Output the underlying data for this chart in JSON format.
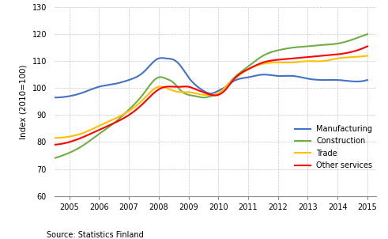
{
  "title": "",
  "ylabel": "Index (2010=100)",
  "source_text": "Source: Statistics Finland",
  "ylim": [
    60,
    130
  ],
  "yticks": [
    60,
    70,
    80,
    90,
    100,
    110,
    120,
    130
  ],
  "xlim": [
    2004.5,
    2015.3
  ],
  "xticks": [
    2005,
    2006,
    2007,
    2008,
    2009,
    2010,
    2011,
    2012,
    2013,
    2014,
    2015
  ],
  "background_color": "#ffffff",
  "grid_color": "#c8c8c8",
  "series": {
    "Manufacturing": {
      "color": "#4472C4",
      "x": [
        2004.5,
        2005.0,
        2005.5,
        2006.0,
        2006.5,
        2007.0,
        2007.5,
        2008.0,
        2008.25,
        2008.5,
        2008.75,
        2009.0,
        2009.25,
        2009.5,
        2009.75,
        2010.0,
        2010.25,
        2010.5,
        2011.0,
        2011.5,
        2012.0,
        2012.5,
        2013.0,
        2013.5,
        2014.0,
        2014.5,
        2015.0
      ],
      "y": [
        96.5,
        97.0,
        98.5,
        100.5,
        101.5,
        103.0,
        106.0,
        111.0,
        111.0,
        110.5,
        108.0,
        104.0,
        101.0,
        99.0,
        98.0,
        99.0,
        100.5,
        102.5,
        104.0,
        105.0,
        104.5,
        104.5,
        103.5,
        103.0,
        103.0,
        102.5,
        103.0
      ]
    },
    "Construction": {
      "color": "#70AD47",
      "x": [
        2004.5,
        2005.0,
        2005.5,
        2006.0,
        2006.5,
        2007.0,
        2007.5,
        2008.0,
        2008.25,
        2008.5,
        2008.75,
        2009.0,
        2009.25,
        2009.5,
        2009.75,
        2010.0,
        2010.25,
        2010.5,
        2011.0,
        2011.5,
        2012.0,
        2012.5,
        2013.0,
        2013.5,
        2014.0,
        2014.5,
        2015.0
      ],
      "y": [
        74.0,
        76.0,
        79.0,
        83.0,
        87.0,
        92.0,
        98.0,
        104.0,
        103.5,
        102.0,
        99.0,
        97.5,
        97.0,
        96.5,
        97.0,
        98.0,
        100.5,
        103.5,
        108.0,
        112.0,
        114.0,
        115.0,
        115.5,
        116.0,
        116.5,
        118.0,
        120.0
      ]
    },
    "Trade": {
      "color": "#FFC000",
      "x": [
        2004.5,
        2005.0,
        2005.5,
        2006.0,
        2006.5,
        2007.0,
        2007.5,
        2008.0,
        2008.25,
        2008.5,
        2008.75,
        2009.0,
        2009.25,
        2009.5,
        2009.75,
        2010.0,
        2010.25,
        2010.5,
        2011.0,
        2011.5,
        2012.0,
        2012.5,
        2013.0,
        2013.5,
        2014.0,
        2014.5,
        2015.0
      ],
      "y": [
        81.5,
        82.0,
        83.5,
        86.0,
        88.5,
        91.5,
        96.0,
        100.5,
        100.0,
        99.0,
        98.5,
        98.5,
        98.0,
        97.5,
        97.5,
        98.0,
        100.5,
        103.0,
        107.0,
        109.0,
        109.5,
        109.5,
        110.0,
        110.0,
        111.0,
        111.5,
        112.0
      ]
    },
    "Other services": {
      "color": "#FF0000",
      "x": [
        2004.5,
        2005.0,
        2005.5,
        2006.0,
        2006.5,
        2007.0,
        2007.5,
        2008.0,
        2008.25,
        2008.5,
        2008.75,
        2009.0,
        2009.25,
        2009.5,
        2009.75,
        2010.0,
        2010.25,
        2010.5,
        2011.0,
        2011.5,
        2012.0,
        2012.5,
        2013.0,
        2013.5,
        2014.0,
        2014.5,
        2015.0
      ],
      "y": [
        79.0,
        80.0,
        82.0,
        84.5,
        87.0,
        90.0,
        94.5,
        99.5,
        100.5,
        100.5,
        100.5,
        100.5,
        99.5,
        98.5,
        97.5,
        97.5,
        99.5,
        103.0,
        107.0,
        109.5,
        110.5,
        111.0,
        111.5,
        112.0,
        112.5,
        113.5,
        115.5
      ]
    }
  },
  "legend_order": [
    "Manufacturing",
    "Construction",
    "Trade",
    "Other services"
  ]
}
